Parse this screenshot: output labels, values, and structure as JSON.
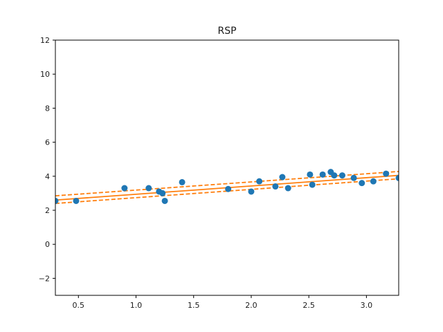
{
  "chart_data": {
    "type": "scatter",
    "title": "RSP",
    "xlabel": "",
    "ylabel": "",
    "xlim": [
      0.3,
      3.28
    ],
    "ylim": [
      -3,
      12
    ],
    "x_ticks": [
      0.5,
      1.0,
      1.5,
      2.0,
      2.5,
      3.0
    ],
    "x_tick_labels": [
      "0.5",
      "1.0",
      "1.5",
      "2.0",
      "2.5",
      "3.0"
    ],
    "y_ticks": [
      -2,
      0,
      2,
      4,
      6,
      8,
      10,
      12
    ],
    "y_tick_labels": [
      "−2",
      "0",
      "2",
      "4",
      "6",
      "8",
      "10",
      "12"
    ],
    "grid": false,
    "series": [
      {
        "kind": "scatter",
        "color": "#1f77b4",
        "x": [
          0.3,
          0.48,
          0.9,
          1.11,
          1.2,
          1.23,
          1.25,
          1.4,
          1.8,
          2.0,
          2.07,
          2.21,
          2.27,
          2.32,
          2.51,
          2.53,
          2.62,
          2.69,
          2.72,
          2.79,
          2.89,
          2.96,
          3.06,
          3.17,
          3.28
        ],
        "y": [
          2.55,
          2.55,
          3.3,
          3.3,
          3.1,
          3.0,
          2.55,
          3.65,
          3.25,
          3.1,
          3.7,
          3.4,
          3.95,
          3.3,
          4.1,
          3.5,
          4.1,
          4.25,
          4.05,
          4.05,
          3.9,
          3.6,
          3.7,
          4.15,
          3.9
        ]
      },
      {
        "kind": "line",
        "style": "solid",
        "color": "#ff7f0e",
        "x": [
          0.3,
          3.28
        ],
        "y": [
          2.6,
          4.05
        ]
      },
      {
        "kind": "line",
        "style": "dashed",
        "color": "#ff7f0e",
        "x": [
          0.3,
          3.28
        ],
        "y": [
          2.85,
          4.28
        ]
      },
      {
        "kind": "line",
        "style": "dashed",
        "color": "#ff7f0e",
        "x": [
          0.3,
          3.28
        ],
        "y": [
          2.4,
          3.85
        ]
      }
    ]
  }
}
